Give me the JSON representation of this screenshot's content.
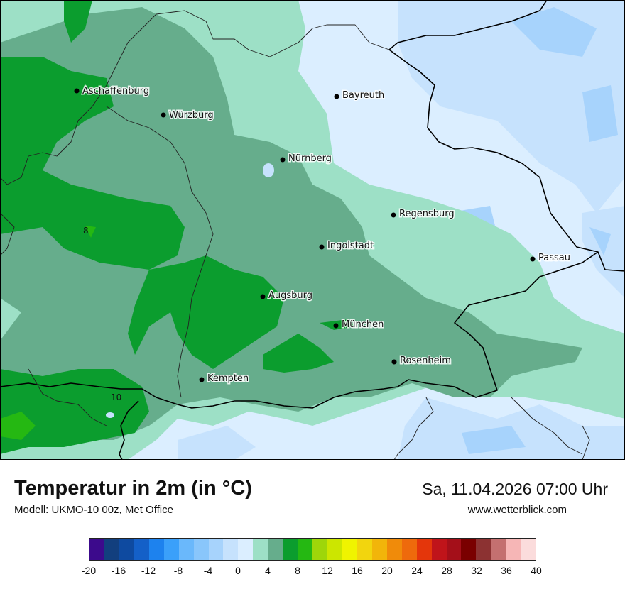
{
  "map": {
    "cities": [
      {
        "name": "Aschaffenburg"
      },
      {
        "name": "Würzburg"
      },
      {
        "name": "Bayreuth"
      },
      {
        "name": "Nürnberg"
      },
      {
        "name": "Regensburg"
      },
      {
        "name": "Ingolstadt"
      },
      {
        "name": "Passau"
      },
      {
        "name": "Augsburg"
      },
      {
        "name": "München"
      },
      {
        "name": "Rosenheim"
      },
      {
        "name": "Kempten"
      }
    ],
    "isotherm_labels": [
      "8",
      "10"
    ]
  },
  "footer": {
    "title": "Temperatur in 2m (in °C)",
    "model": "Modell: UKMO-10 00z, Met Office",
    "datetime": "Sa, 11.04.2026 07:00 Uhr",
    "site": "www.wetterblick.com"
  },
  "legend": {
    "colors": [
      "#3c0a8c",
      "#123f7e",
      "#0e4aa0",
      "#1460c8",
      "#1d82ee",
      "#3aa0fa",
      "#6ab8fb",
      "#89c6fb",
      "#a7d3fc",
      "#c6e2fd",
      "#dbeeff",
      "#9de0c6",
      "#66ad8c",
      "#0b9d2e",
      "#25b812",
      "#9ed60a",
      "#cce600",
      "#f0f400",
      "#f2d50e",
      "#f2b50a",
      "#f08b0a",
      "#ee6a0c",
      "#e4360b",
      "#c0141a",
      "#a40f19",
      "#7a0000",
      "#8c3232",
      "#c47070",
      "#f6b6b6",
      "#fbdcdc"
    ],
    "ticks": [
      "-20",
      "-16",
      "-12",
      "-8",
      "-4",
      "0",
      "4",
      "8",
      "12",
      "16",
      "20",
      "24",
      "28",
      "32",
      "36",
      "40"
    ]
  }
}
